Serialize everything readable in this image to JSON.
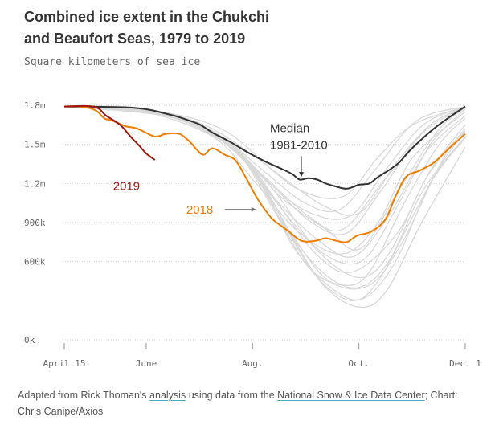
{
  "header": {
    "title_line1": "Combined ice extent in the Chukchi",
    "title_line2": "and Beaufort Seas, 1979 to 2019",
    "subtitle": "Square kilometers of sea ice"
  },
  "colors": {
    "historical": "#d9d9d9",
    "median": "#333333",
    "y2018": "#f07d00",
    "y2019": "#a3160f",
    "grid": "#d5d5d5",
    "axis_text": "#666666"
  },
  "chart_data": {
    "type": "line",
    "title": "Combined ice extent in the Chukchi and Beaufort Seas, 1979 to 2019",
    "ylabel": "Square kilometers of sea ice",
    "y_ticks": [
      {
        "value": 0,
        "label": "0k"
      },
      {
        "value": 600000,
        "label": "600k"
      },
      {
        "value": 900000,
        "label": "900k"
      },
      {
        "value": 1200000,
        "label": "1.2m"
      },
      {
        "value": 1500000,
        "label": "1.5m"
      },
      {
        "value": 1800000,
        "label": "1.8m"
      }
    ],
    "x_ticks": [
      {
        "day": 0,
        "label": "April 15"
      },
      {
        "day": 47,
        "label": "June"
      },
      {
        "day": 108,
        "label": "Aug."
      },
      {
        "day": 169,
        "label": "Oct."
      },
      {
        "day": 230,
        "label": "Dec. 1"
      }
    ],
    "xlim": [
      0,
      230
    ],
    "ylim": [
      0,
      1800000
    ],
    "annotations": [
      {
        "series": "median",
        "text_lines": [
          "Median",
          "1981-2010"
        ]
      },
      {
        "series": "2018",
        "text": "2018"
      },
      {
        "series": "2019",
        "text": "2019"
      }
    ],
    "series": [
      {
        "name": "2019",
        "key": "2019",
        "points": [
          [
            0,
            1790000
          ],
          [
            17,
            1790000
          ],
          [
            24,
            1720000
          ],
          [
            32,
            1650000
          ],
          [
            38,
            1560000
          ],
          [
            43,
            1490000
          ],
          [
            47,
            1430000
          ],
          [
            52,
            1380000
          ]
        ]
      },
      {
        "name": "2018",
        "key": "2018",
        "points": [
          [
            0,
            1790000
          ],
          [
            10,
            1790000
          ],
          [
            18,
            1760000
          ],
          [
            23,
            1700000
          ],
          [
            28,
            1680000
          ],
          [
            35,
            1640000
          ],
          [
            42,
            1620000
          ],
          [
            52,
            1560000
          ],
          [
            58,
            1580000
          ],
          [
            66,
            1580000
          ],
          [
            72,
            1520000
          ],
          [
            76,
            1460000
          ],
          [
            80,
            1420000
          ],
          [
            85,
            1470000
          ],
          [
            92,
            1420000
          ],
          [
            98,
            1380000
          ],
          [
            104,
            1250000
          ],
          [
            110,
            1100000
          ],
          [
            115,
            1000000
          ],
          [
            120,
            920000
          ],
          [
            128,
            840000
          ],
          [
            136,
            760000
          ],
          [
            144,
            760000
          ],
          [
            150,
            780000
          ],
          [
            156,
            760000
          ],
          [
            162,
            750000
          ],
          [
            168,
            800000
          ],
          [
            176,
            830000
          ],
          [
            184,
            920000
          ],
          [
            190,
            1100000
          ],
          [
            196,
            1250000
          ],
          [
            204,
            1300000
          ],
          [
            212,
            1360000
          ],
          [
            220,
            1460000
          ],
          [
            230,
            1580000
          ]
        ]
      },
      {
        "name": "Median 1981-2010",
        "key": "median",
        "points": [
          [
            0,
            1790000
          ],
          [
            40,
            1780000
          ],
          [
            60,
            1730000
          ],
          [
            70,
            1690000
          ],
          [
            78,
            1650000
          ],
          [
            85,
            1590000
          ],
          [
            95,
            1520000
          ],
          [
            105,
            1440000
          ],
          [
            115,
            1370000
          ],
          [
            125,
            1310000
          ],
          [
            131,
            1270000
          ],
          [
            135,
            1230000
          ],
          [
            140,
            1240000
          ],
          [
            145,
            1230000
          ],
          [
            150,
            1200000
          ],
          [
            155,
            1180000
          ],
          [
            162,
            1160000
          ],
          [
            169,
            1190000
          ],
          [
            175,
            1200000
          ],
          [
            180,
            1250000
          ],
          [
            186,
            1300000
          ],
          [
            192,
            1360000
          ],
          [
            198,
            1450000
          ],
          [
            205,
            1540000
          ],
          [
            212,
            1620000
          ],
          [
            220,
            1700000
          ],
          [
            230,
            1790000
          ]
        ]
      }
    ],
    "historical": [
      [
        [
          0,
          1790000
        ],
        [
          50,
          1760000
        ],
        [
          90,
          1620000
        ],
        [
          120,
          1300000
        ],
        [
          150,
          1020000
        ],
        [
          170,
          980000
        ],
        [
          190,
          1350000
        ],
        [
          210,
          1650000
        ],
        [
          230,
          1790000
        ]
      ],
      [
        [
          0,
          1790000
        ],
        [
          40,
          1770000
        ],
        [
          85,
          1560000
        ],
        [
          110,
          1200000
        ],
        [
          135,
          820000
        ],
        [
          160,
          660000
        ],
        [
          180,
          900000
        ],
        [
          200,
          1400000
        ],
        [
          230,
          1750000
        ]
      ],
      [
        [
          0,
          1790000
        ],
        [
          55,
          1740000
        ],
        [
          95,
          1500000
        ],
        [
          120,
          1000000
        ],
        [
          140,
          560000
        ],
        [
          160,
          420000
        ],
        [
          175,
          520000
        ],
        [
          195,
          1050000
        ],
        [
          215,
          1500000
        ],
        [
          230,
          1700000
        ]
      ],
      [
        [
          0,
          1790000
        ],
        [
          45,
          1760000
        ],
        [
          85,
          1600000
        ],
        [
          115,
          1250000
        ],
        [
          140,
          950000
        ],
        [
          160,
          850000
        ],
        [
          185,
          1250000
        ],
        [
          210,
          1600000
        ],
        [
          230,
          1780000
        ]
      ],
      [
        [
          0,
          1790000
        ],
        [
          60,
          1720000
        ],
        [
          100,
          1420000
        ],
        [
          125,
          900000
        ],
        [
          145,
          480000
        ],
        [
          165,
          300000
        ],
        [
          180,
          450000
        ],
        [
          200,
          950000
        ],
        [
          220,
          1450000
        ],
        [
          230,
          1600000
        ]
      ],
      [
        [
          0,
          1790000
        ],
        [
          50,
          1750000
        ],
        [
          90,
          1550000
        ],
        [
          120,
          1150000
        ],
        [
          145,
          700000
        ],
        [
          170,
          600000
        ],
        [
          190,
          1000000
        ],
        [
          210,
          1500000
        ],
        [
          230,
          1770000
        ]
      ],
      [
        [
          0,
          1790000
        ],
        [
          65,
          1700000
        ],
        [
          105,
          1350000
        ],
        [
          130,
          800000
        ],
        [
          150,
          400000
        ],
        [
          170,
          250000
        ],
        [
          185,
          380000
        ],
        [
          205,
          900000
        ],
        [
          230,
          1480000
        ]
      ],
      [
        [
          0,
          1790000
        ],
        [
          42,
          1780000
        ],
        [
          80,
          1650000
        ],
        [
          110,
          1400000
        ],
        [
          135,
          1150000
        ],
        [
          160,
          1100000
        ],
        [
          180,
          1400000
        ],
        [
          200,
          1650000
        ],
        [
          230,
          1790000
        ]
      ],
      [
        [
          0,
          1790000
        ],
        [
          55,
          1730000
        ],
        [
          95,
          1480000
        ],
        [
          122,
          1050000
        ],
        [
          145,
          650000
        ],
        [
          165,
          520000
        ],
        [
          190,
          800000
        ],
        [
          210,
          1300000
        ],
        [
          230,
          1650000
        ]
      ],
      [
        [
          0,
          1790000
        ],
        [
          48,
          1770000
        ],
        [
          88,
          1580000
        ],
        [
          118,
          1200000
        ],
        [
          142,
          900000
        ],
        [
          162,
          820000
        ],
        [
          182,
          1150000
        ],
        [
          205,
          1580000
        ],
        [
          230,
          1790000
        ]
      ],
      [
        [
          0,
          1790000
        ],
        [
          70,
          1680000
        ],
        [
          108,
          1300000
        ],
        [
          132,
          700000
        ],
        [
          155,
          380000
        ],
        [
          172,
          320000
        ],
        [
          190,
          600000
        ],
        [
          210,
          1200000
        ],
        [
          230,
          1550000
        ]
      ],
      [
        [
          0,
          1790000
        ],
        [
          52,
          1760000
        ],
        [
          92,
          1540000
        ],
        [
          124,
          1100000
        ],
        [
          150,
          850000
        ],
        [
          170,
          700000
        ],
        [
          192,
          1150000
        ],
        [
          214,
          1600000
        ],
        [
          230,
          1780000
        ]
      ],
      [
        [
          0,
          1790000
        ],
        [
          58,
          1740000
        ],
        [
          98,
          1470000
        ],
        [
          128,
          950000
        ],
        [
          152,
          600000
        ],
        [
          172,
          480000
        ],
        [
          188,
          700000
        ],
        [
          208,
          1250000
        ],
        [
          230,
          1620000
        ]
      ],
      [
        [
          0,
          1790000
        ],
        [
          44,
          1770000
        ],
        [
          84,
          1610000
        ],
        [
          114,
          1300000
        ],
        [
          138,
          1050000
        ],
        [
          158,
          1000000
        ],
        [
          178,
          1300000
        ],
        [
          202,
          1680000
        ],
        [
          230,
          1790000
        ]
      ],
      [
        [
          0,
          1790000
        ],
        [
          62,
          1720000
        ],
        [
          102,
          1400000
        ],
        [
          126,
          880000
        ],
        [
          148,
          520000
        ],
        [
          168,
          400000
        ],
        [
          186,
          600000
        ],
        [
          206,
          1150000
        ],
        [
          230,
          1560000
        ]
      ],
      [
        [
          0,
          1790000
        ],
        [
          54,
          1750000
        ],
        [
          94,
          1520000
        ],
        [
          121,
          1080000
        ],
        [
          146,
          760000
        ],
        [
          166,
          640000
        ],
        [
          186,
          950000
        ],
        [
          208,
          1450000
        ],
        [
          230,
          1720000
        ]
      ],
      [
        [
          0,
          1790000
        ],
        [
          66,
          1710000
        ],
        [
          104,
          1380000
        ],
        [
          130,
          820000
        ],
        [
          152,
          450000
        ],
        [
          175,
          420000
        ],
        [
          194,
          750000
        ],
        [
          214,
          1300000
        ],
        [
          230,
          1600000
        ]
      ],
      [
        [
          0,
          1790000
        ],
        [
          46,
          1770000
        ],
        [
          86,
          1590000
        ],
        [
          116,
          1220000
        ],
        [
          140,
          980000
        ],
        [
          164,
          950000
        ],
        [
          184,
          1300000
        ],
        [
          206,
          1650000
        ],
        [
          230,
          1790000
        ]
      ]
    ]
  },
  "footer": {
    "prefix": "Adapted from Rick Thoman's ",
    "link1": "analysis",
    "middle": " using data from the ",
    "link2": "National Snow & Ice Data Center",
    "suffix": "; Chart: Chris Canipe/Axios"
  }
}
